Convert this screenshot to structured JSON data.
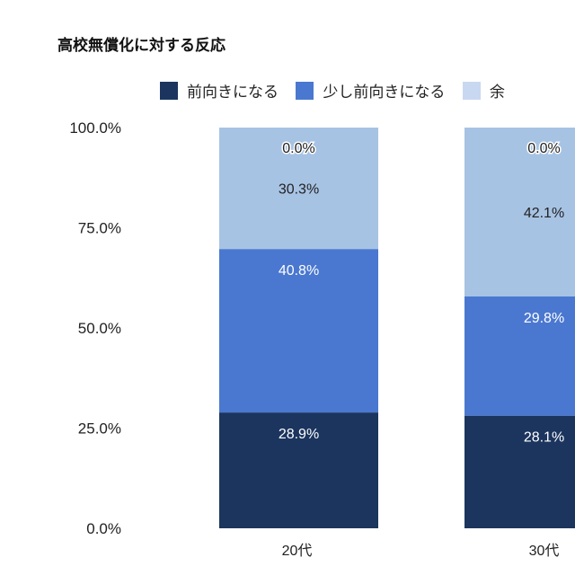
{
  "chart_data": {
    "type": "bar",
    "stacked": true,
    "title": "高校無償化に対する反応",
    "categories": [
      "20代",
      "30代"
    ],
    "series": [
      {
        "name": "前向きになる",
        "values": [
          28.9,
          28.1
        ],
        "color": "#1b355e",
        "legend_color": "#1b355e"
      },
      {
        "name": "少し前向きになる",
        "values": [
          40.8,
          29.8
        ],
        "color": "#4a78d0",
        "legend_color": "#4a78d0"
      },
      {
        "name": "余",
        "values": [
          30.3,
          42.1
        ],
        "color": "#a7c3e4",
        "legend_color": "#c9d8f1"
      },
      {
        "values": [
          0.0,
          0.0
        ],
        "color": "#c9d8f1"
      }
    ],
    "data_labels": [
      [
        "28.9%",
        "28.1%"
      ],
      [
        "40.8%",
        "29.8%"
      ],
      [
        "30.3%",
        "42.1%"
      ],
      [
        "0.0%",
        "0.0%"
      ]
    ],
    "yticks": [
      "0.0%",
      "25.0%",
      "50.0%",
      "75.0%",
      "100.0%"
    ],
    "ylim": [
      0,
      100
    ],
    "xlabel": "",
    "ylabel": "",
    "grid": false,
    "legend_position": "top"
  }
}
